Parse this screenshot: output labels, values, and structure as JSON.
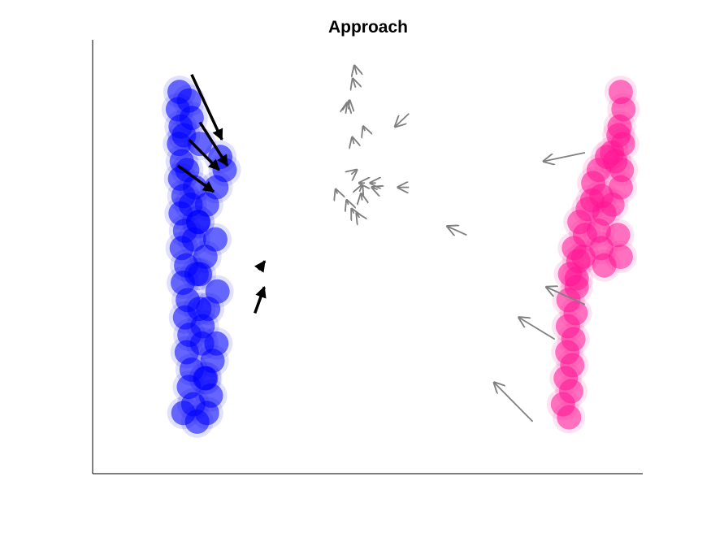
{
  "chart_data": {
    "type": "scatter",
    "title": "Approach",
    "xlabel": "",
    "ylabel": "",
    "xlim": [
      0,
      100
    ],
    "ylim": [
      0,
      100
    ],
    "grid": false,
    "ticks": false,
    "colors": {
      "blue_cluster": "#0000ff",
      "pink_cluster": "#ff1493",
      "black_arrows": "#000000",
      "gray_arrows": "#808080"
    },
    "series": [
      {
        "points": [
          [
            15.8,
            88
          ],
          [
            15.5,
            84
          ],
          [
            16,
            80
          ],
          [
            15.7,
            76
          ],
          [
            16.2,
            72
          ],
          [
            15.9,
            68
          ],
          [
            16.5,
            64
          ],
          [
            16,
            60
          ],
          [
            16.8,
            56
          ],
          [
            16.2,
            52
          ],
          [
            17,
            48
          ],
          [
            16.4,
            44
          ],
          [
            17.3,
            40
          ],
          [
            16.8,
            36
          ],
          [
            17.6,
            32
          ],
          [
            17.1,
            28
          ],
          [
            18,
            24
          ],
          [
            17.5,
            20
          ],
          [
            18.3,
            16
          ],
          [
            16.5,
            14
          ],
          [
            19,
            12
          ],
          [
            20.8,
            14
          ],
          [
            21.5,
            18
          ],
          [
            20.6,
            22
          ],
          [
            21.8,
            26
          ],
          [
            22.5,
            30
          ],
          [
            20,
            34
          ],
          [
            21,
            38
          ],
          [
            22.7,
            42
          ],
          [
            19.5,
            46
          ],
          [
            20.5,
            50
          ],
          [
            22.3,
            54
          ],
          [
            19.2,
            58
          ],
          [
            20.8,
            62
          ],
          [
            22.5,
            66
          ],
          [
            24,
            70
          ],
          [
            23.2,
            73
          ],
          [
            19.5,
            76
          ],
          [
            18,
            82
          ],
          [
            17.5,
            86
          ],
          [
            16.6,
            78
          ],
          [
            17.2,
            70
          ],
          [
            17.8,
            62
          ],
          [
            18.4,
            54
          ],
          [
            18.9,
            46
          ],
          [
            19.4,
            38
          ],
          [
            19.9,
            30
          ],
          [
            20.4,
            22
          ],
          [
            18.6,
            66
          ],
          [
            19.2,
            58
          ]
        ]
      },
      {
        "points": [
          [
            96,
            88
          ],
          [
            96.5,
            84
          ],
          [
            95.8,
            80
          ],
          [
            96.4,
            76
          ],
          [
            95,
            72
          ],
          [
            93.5,
            73
          ],
          [
            92,
            70
          ],
          [
            91,
            67
          ],
          [
            92.5,
            64
          ],
          [
            90,
            61
          ],
          [
            88.5,
            58
          ],
          [
            89.5,
            55
          ],
          [
            87.5,
            52
          ],
          [
            88.3,
            49
          ],
          [
            86.8,
            46
          ],
          [
            88,
            43
          ],
          [
            86.5,
            40
          ],
          [
            87.8,
            37
          ],
          [
            86.4,
            34
          ],
          [
            87.4,
            31
          ],
          [
            86.3,
            28
          ],
          [
            87.2,
            25
          ],
          [
            86,
            22
          ],
          [
            87,
            19
          ],
          [
            85.5,
            16
          ],
          [
            86.6,
            13
          ],
          [
            93,
            60
          ],
          [
            94.5,
            62
          ],
          [
            96,
            66
          ],
          [
            92,
            56
          ],
          [
            95.5,
            55
          ],
          [
            96,
            50
          ],
          [
            93,
            48
          ],
          [
            92.5,
            52
          ],
          [
            96.2,
            70
          ],
          [
            95.6,
            78
          ],
          [
            94.4,
            74
          ],
          [
            90.8,
            63
          ],
          [
            89.2,
            50
          ],
          [
            88,
            45
          ]
        ]
      }
    ],
    "arrows_black": [
      [
        18,
        92,
        23.5,
        77
      ],
      [
        19.5,
        81,
        24.5,
        71
      ],
      [
        17.5,
        77,
        23,
        70
      ],
      [
        15.5,
        71,
        22,
        65
      ],
      [
        29.5,
        37,
        31.2,
        43
      ],
      [
        30.2,
        47,
        31.3,
        49
      ]
    ],
    "arrows_gray": [
      [
        89.5,
        74,
        82,
        72
      ],
      [
        89.5,
        39,
        82.5,
        43
      ],
      [
        84,
        31,
        77.5,
        36
      ],
      [
        80,
        12,
        73,
        21
      ],
      [
        68,
        55,
        64.5,
        57
      ],
      [
        57.5,
        66,
        55.5,
        66
      ],
      [
        57.5,
        83,
        55,
        80
      ],
      [
        47.8,
        89,
        47.3,
        91
      ],
      [
        48,
        92,
        47.6,
        94
      ],
      [
        46.5,
        84,
        46.7,
        86
      ],
      [
        46,
        83,
        46.3,
        85.5
      ],
      [
        49.5,
        79,
        49.2,
        80
      ],
      [
        47.5,
        76,
        47.2,
        77.5
      ],
      [
        47,
        69,
        48,
        70
      ],
      [
        49.5,
        67,
        48.5,
        67
      ],
      [
        51.5,
        67,
        50.5,
        67
      ],
      [
        51.8,
        65.5,
        50.8,
        66
      ],
      [
        48.5,
        65,
        49,
        66.5
      ],
      [
        49,
        63,
        48.8,
        64.5
      ],
      [
        44.5,
        64.5,
        44.2,
        65.5
      ],
      [
        46.5,
        62,
        46.2,
        63
      ],
      [
        47.5,
        60,
        47.1,
        61
      ],
      [
        48.5,
        59,
        48,
        60
      ]
    ]
  }
}
